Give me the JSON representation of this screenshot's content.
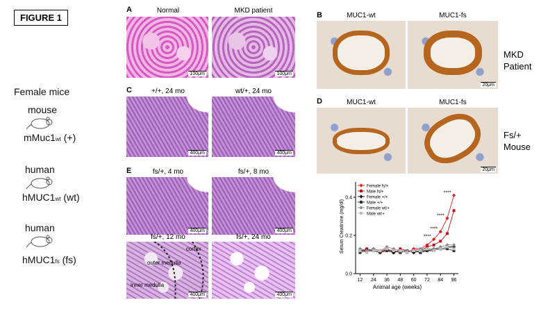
{
  "figure_label": "FIGURE 1",
  "mice": {
    "heading": "Female mice",
    "groups": [
      {
        "species": "mouse",
        "gene": "mMuc1",
        "sub": "wt",
        "allele": "(+)"
      },
      {
        "species": "human",
        "gene": "hMUC1",
        "sub": "wt",
        "allele": "(wt)"
      },
      {
        "species": "human",
        "gene": "hMUC1",
        "sub": "fs",
        "allele": "(fs)"
      }
    ]
  },
  "panels": {
    "A": {
      "letter": "A",
      "images": [
        {
          "label": "Normal",
          "scale": "100μm"
        },
        {
          "label": "MKD patient",
          "scale": "100μm"
        }
      ]
    },
    "C": {
      "letter": "C",
      "images": [
        {
          "label": "+/+, 24 mo",
          "scale": "400μm"
        },
        {
          "label": "wt/+, 24 mo",
          "scale": "400μm"
        }
      ]
    },
    "E": {
      "letter": "E",
      "images": [
        {
          "label": "fs/+, 4 mo",
          "scale": "400μm"
        },
        {
          "label": "fs/+, 8 mo",
          "scale": "400μm"
        },
        {
          "label": "fs/+, 12 mo",
          "scale": "400μm",
          "regions": [
            "cortex",
            "outer medulla",
            "inner medulla"
          ]
        },
        {
          "label": "fs/+, 24 mo",
          "scale": "400μm"
        }
      ]
    },
    "B": {
      "letter": "B",
      "images": [
        {
          "label": "MUC1-wt"
        },
        {
          "label": "MUC1-fs",
          "scale": "20μm"
        }
      ],
      "side": "MKD Patient"
    },
    "D": {
      "letter": "D",
      "images": [
        {
          "label": "MUC1-wt"
        },
        {
          "label": "MUC1-fs",
          "scale": "20μm"
        }
      ],
      "side": "Fs/+ Mouse"
    }
  },
  "chart": {
    "type": "line",
    "xlabel": "Animal age (weeks)",
    "ylabel": "Serum Creatinine (mg/dl)",
    "x": [
      12,
      18,
      24,
      30,
      36,
      42,
      48,
      54,
      60,
      66,
      72,
      78,
      84,
      90,
      96
    ],
    "xlim": [
      8,
      100
    ],
    "xticks": [
      12,
      24,
      36,
      48,
      60,
      72,
      84,
      96
    ],
    "ylim": [
      0,
      0.48
    ],
    "yticks": [
      {
        "value": 0,
        "label": "0.0"
      },
      0.2,
      0.4
    ],
    "legend": "top-left",
    "series": [
      {
        "name": "Female fs/+",
        "color": "#e0201c",
        "marker": "diamond",
        "values": [
          0.13,
          0.12,
          0.12,
          0.11,
          0.13,
          0.12,
          0.12,
          0.11,
          0.13,
          0.13,
          0.15,
          0.18,
          0.22,
          0.29,
          0.41
        ]
      },
      {
        "name": "Male fs/+",
        "color": "#c0141a",
        "marker": "square",
        "values": [
          0.12,
          0.13,
          0.12,
          0.12,
          0.12,
          0.11,
          0.13,
          0.12,
          0.12,
          0.12,
          0.14,
          0.15,
          0.17,
          0.21,
          0.33
        ]
      },
      {
        "name": "Female +/+",
        "color": "#111111",
        "marker": "diamond",
        "values": [
          0.12,
          0.12,
          0.13,
          0.12,
          0.13,
          0.11,
          0.12,
          0.12,
          0.11,
          0.12,
          0.12,
          0.13,
          0.13,
          0.14,
          0.14
        ]
      },
      {
        "name": "Male +/+",
        "color": "#333333",
        "marker": "square",
        "values": [
          0.11,
          0.12,
          0.12,
          0.11,
          0.12,
          0.12,
          0.11,
          0.12,
          0.12,
          0.11,
          0.12,
          0.12,
          0.13,
          0.13,
          0.12
        ]
      },
      {
        "name": "Female wt/+",
        "color": "#8a8a8a",
        "marker": "diamond",
        "values": [
          0.13,
          0.12,
          0.13,
          0.12,
          0.14,
          0.13,
          0.12,
          0.12,
          0.12,
          0.13,
          0.13,
          0.13,
          0.14,
          0.15,
          0.15
        ]
      },
      {
        "name": "Male wt/+",
        "color": "#bdbdbd",
        "marker": "square",
        "values": [
          0.12,
          0.11,
          0.12,
          0.12,
          0.13,
          0.12,
          0.12,
          0.11,
          0.12,
          0.12,
          0.13,
          0.12,
          0.13,
          0.14,
          0.13
        ]
      }
    ],
    "annotations": [
      {
        "text": "****",
        "x": 78
      },
      {
        "text": "****",
        "x": 84
      },
      {
        "text": "****",
        "x": 90
      },
      {
        "text": "****",
        "x": 96
      }
    ]
  }
}
